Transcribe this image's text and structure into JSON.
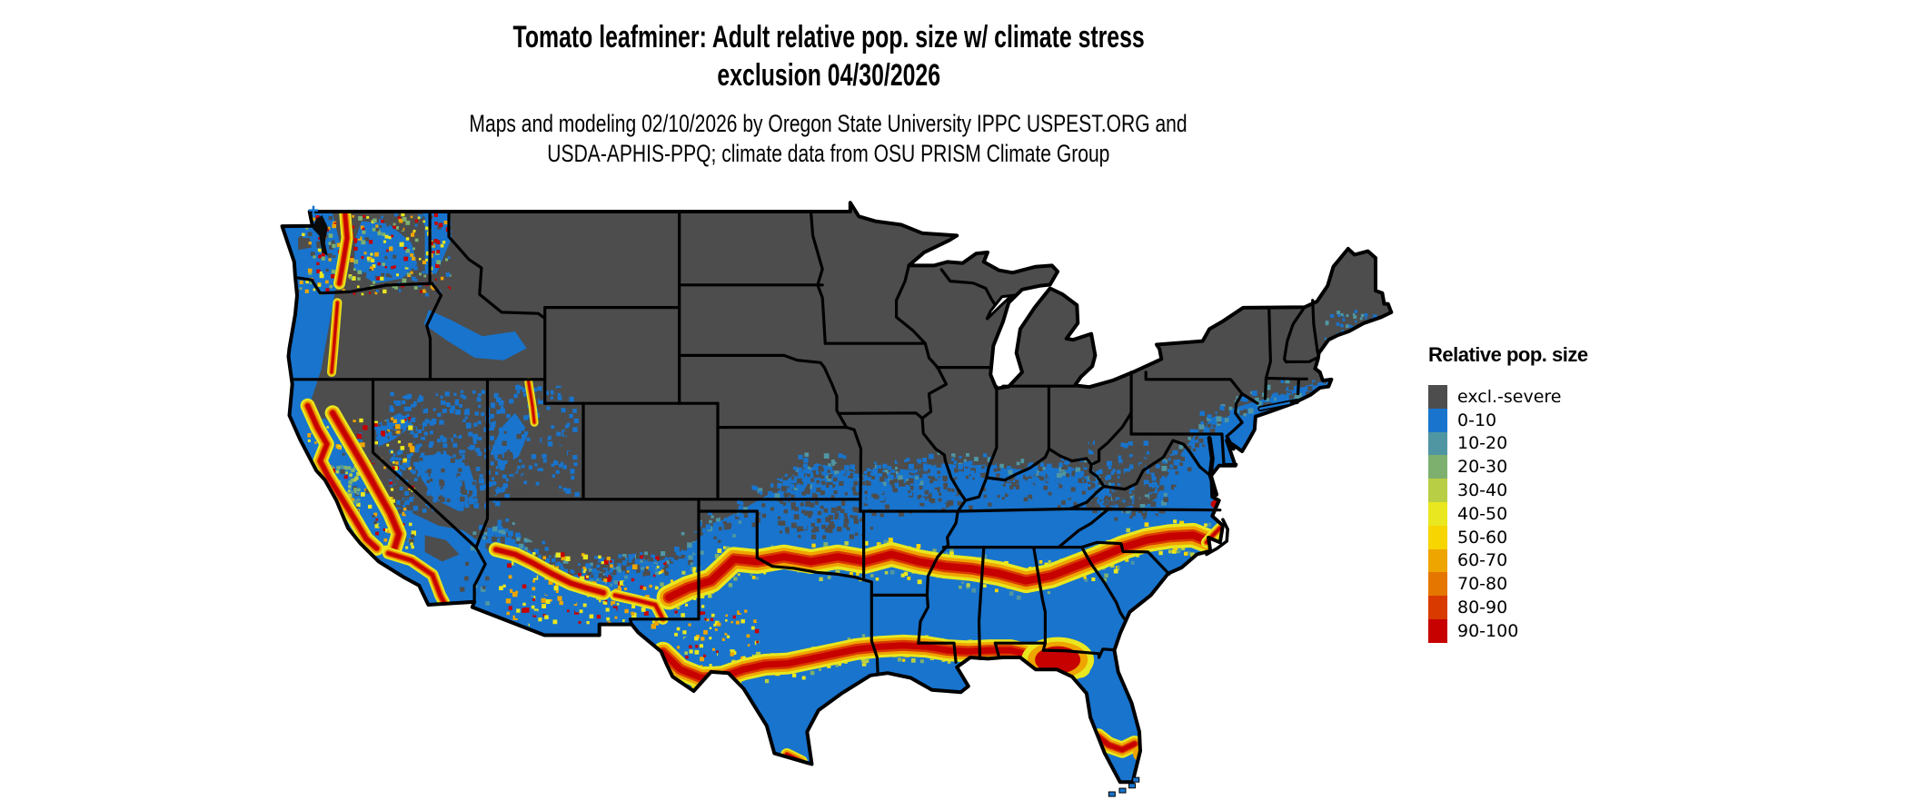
{
  "title": {
    "line1": "Tomato leafminer: Adult relative pop. size w/ climate stress",
    "line2": "exclusion 04/30/2026"
  },
  "subtitle": {
    "line1": "Maps and modeling 02/10/2026 by Oregon State University IPPC USPEST.ORG and",
    "line2": "USDA-APHIS-PPQ; climate data from OSU PRISM Climate Group"
  },
  "legend": {
    "title": "Relative pop. size",
    "items": [
      {
        "label": "excl.-severe",
        "color": "#4D4D4D"
      },
      {
        "label": "0-10",
        "color": "#1874CD"
      },
      {
        "label": "10-20",
        "color": "#4F96A2"
      },
      {
        "label": "20-30",
        "color": "#7DB06F"
      },
      {
        "label": "30-40",
        "color": "#B8CE44"
      },
      {
        "label": "40-50",
        "color": "#E9E71F"
      },
      {
        "label": "50-60",
        "color": "#F6D500"
      },
      {
        "label": "60-70",
        "color": "#EEA500"
      },
      {
        "label": "70-80",
        "color": "#E57700"
      },
      {
        "label": "80-90",
        "color": "#D93A00"
      },
      {
        "label": "90-100",
        "color": "#C70000"
      }
    ]
  },
  "map": {
    "region": "Continental United States",
    "colors": {
      "background": "#FFFFFF",
      "border": "#000000",
      "excluded": "#4D4D4D",
      "base_population": "#1874CD",
      "water": "#FFFFFF"
    }
  }
}
